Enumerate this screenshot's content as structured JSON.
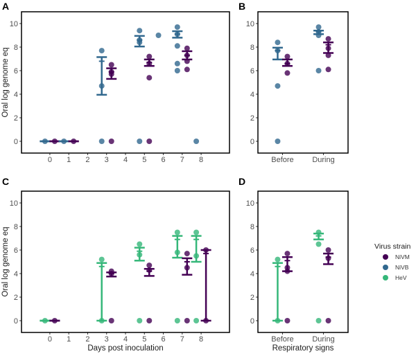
{
  "colors": {
    "NiVM": "#440154",
    "NiVB": "#31688e",
    "HeV": "#35b779"
  },
  "legend": {
    "title": "Virus strain",
    "items": [
      "NiVM",
      "NiVB",
      "HeV"
    ],
    "placement": "right"
  },
  "chart_data": [
    {
      "panel": "A",
      "type": "scatter",
      "xlabel": "",
      "ylabel": "Oral log genome eq",
      "xticks": [
        0,
        1,
        2,
        3,
        4,
        5,
        6,
        7,
        8
      ],
      "yticks": [
        0,
        2,
        4,
        6,
        8,
        10
      ],
      "xlim": [
        -1.5,
        9.5
      ],
      "ylim": [
        -1,
        11
      ],
      "grid": false,
      "groups": [
        {
          "x": 0,
          "strain": "NiVB",
          "points": [
            0
          ],
          "bar": [
            0,
            0,
            0
          ]
        },
        {
          "x": 0,
          "strain": "NiVM",
          "points": [
            0
          ],
          "bar": [
            0,
            0,
            0
          ]
        },
        {
          "x": 1,
          "strain": "NiVB",
          "points": [
            0
          ],
          "bar": [
            0,
            0,
            0
          ]
        },
        {
          "x": 1,
          "strain": "NiVM",
          "points": [
            0
          ],
          "bar": [
            0,
            0,
            0
          ]
        },
        {
          "x": 3,
          "strain": "NiVB",
          "points": [
            7.7,
            4.7,
            0
          ],
          "bar": [
            3.95,
            6.8,
            7.15
          ]
        },
        {
          "x": 3,
          "strain": "NiVM",
          "points": [
            6.5,
            5.9,
            5.7,
            0
          ],
          "bar": [
            5.3,
            5.9,
            6.2
          ]
        },
        {
          "x": 5,
          "strain": "NiVB",
          "points": [
            9.4,
            8.6,
            8.4,
            0
          ],
          "bar": [
            8.05,
            8.6,
            8.95
          ]
        },
        {
          "x": 5,
          "strain": "NiVM",
          "points": [
            7.2,
            6.6,
            5.4,
            0
          ],
          "bar": [
            6.4,
            6.7,
            6.95
          ]
        },
        {
          "x": 6,
          "strain": "NiVB",
          "points": [
            9.0
          ],
          "bar": null
        },
        {
          "x": 7,
          "strain": "NiVB",
          "points": [
            9.7,
            9.1,
            8.1,
            6.6,
            6.0
          ],
          "bar": [
            8.8,
            9.1,
            9.35
          ]
        },
        {
          "x": 7,
          "strain": "NiVM",
          "points": [
            7.9,
            7.3,
            6.8,
            6.1
          ],
          "bar": [
            6.95,
            7.3,
            7.65
          ]
        },
        {
          "x": 8,
          "strain": "NiVB",
          "points": [
            0
          ],
          "bar": null
        }
      ]
    },
    {
      "panel": "B",
      "type": "scatter",
      "xlabel": "",
      "ylabel": "",
      "categories": [
        "Before",
        "During"
      ],
      "yticks": [
        0,
        2,
        4,
        6,
        8,
        10
      ],
      "ylim": [
        -1,
        11
      ],
      "grid": false,
      "groups": [
        {
          "x": "Before",
          "strain": "NiVB",
          "points": [
            8.4,
            7.7,
            4.7,
            0
          ],
          "bar": [
            6.95,
            7.7,
            7.95
          ]
        },
        {
          "x": "Before",
          "strain": "NiVM",
          "points": [
            7.2,
            6.6,
            5.8
          ],
          "bar": [
            6.4,
            6.6,
            6.95
          ]
        },
        {
          "x": "During",
          "strain": "NiVB",
          "points": [
            9.7,
            9.3,
            9.0,
            6.0
          ],
          "bar": [
            9.1,
            9.3,
            9.4
          ]
        },
        {
          "x": "During",
          "strain": "NiVM",
          "points": [
            8.7,
            7.9,
            7.3,
            6.1
          ],
          "bar": [
            7.5,
            8.2,
            8.4
          ]
        }
      ]
    },
    {
      "panel": "C",
      "type": "scatter",
      "xlabel": "Days post inoculation",
      "ylabel": "Oral log genome eq",
      "xticks": [
        0,
        1,
        2,
        3,
        4,
        5,
        6,
        7,
        8
      ],
      "yticks": [
        0,
        2,
        4,
        6,
        8,
        10
      ],
      "xlim": [
        -1.5,
        9.5
      ],
      "ylim": [
        -1,
        11
      ],
      "grid": false,
      "groups": [
        {
          "x": 0,
          "strain": "HeV",
          "points": [
            0
          ],
          "bar": [
            0,
            0,
            0
          ]
        },
        {
          "x": 0,
          "strain": "NiVM",
          "points": [
            0
          ],
          "bar": [
            0,
            0,
            0
          ]
        },
        {
          "x": 3,
          "strain": "HeV",
          "points": [
            5.2,
            0
          ],
          "bar": [
            0,
            4.6,
            4.9
          ]
        },
        {
          "x": 3,
          "strain": "NiVM",
          "points": [
            4.2,
            4.0,
            0
          ],
          "bar": [
            3.75,
            4.0,
            4.1
          ]
        },
        {
          "x": 5,
          "strain": "HeV",
          "points": [
            6.5,
            5.6,
            0
          ],
          "bar": [
            5.1,
            5.9,
            6.2
          ]
        },
        {
          "x": 5,
          "strain": "NiVM",
          "points": [
            4.7,
            4.3,
            0
          ],
          "bar": [
            3.8,
            4.2,
            4.4
          ]
        },
        {
          "x": 7,
          "strain": "HeV",
          "points": [
            7.5,
            5.8,
            0
          ],
          "bar": [
            5.35,
            6.9,
            7.2
          ]
        },
        {
          "x": 7,
          "strain": "NiVM",
          "points": [
            5.7,
            4.5,
            0
          ],
          "bar": [
            3.9,
            5.0,
            5.3
          ]
        },
        {
          "x": 8,
          "strain": "HeV",
          "points": [
            7.5,
            5.5,
            0
          ],
          "bar": [
            5.0,
            6.9,
            7.2
          ]
        },
        {
          "x": 8,
          "strain": "NiVM",
          "points": [
            6.0,
            0
          ],
          "bar": [
            0,
            5.7,
            6.0
          ]
        }
      ]
    },
    {
      "panel": "D",
      "type": "scatter",
      "xlabel": "Respiratory signs",
      "ylabel": "",
      "categories": [
        "Before",
        "During"
      ],
      "yticks": [
        0,
        2,
        4,
        6,
        8,
        10
      ],
      "ylim": [
        -1,
        11
      ],
      "grid": false,
      "groups": [
        {
          "x": "Before",
          "strain": "HeV",
          "points": [
            5.2,
            0
          ],
          "bar": [
            0,
            4.6,
            4.9
          ]
        },
        {
          "x": "Before",
          "strain": "NiVM",
          "points": [
            5.7,
            4.5,
            4.2,
            0
          ],
          "bar": [
            4.2,
            5.1,
            5.4
          ]
        },
        {
          "x": "During",
          "strain": "HeV",
          "points": [
            7.5,
            6.5,
            0
          ],
          "bar": [
            6.9,
            7.2,
            7.4
          ]
        },
        {
          "x": "During",
          "strain": "NiVM",
          "points": [
            6.0,
            5.3,
            0
          ],
          "bar": [
            4.8,
            5.4,
            5.7
          ]
        }
      ]
    }
  ]
}
